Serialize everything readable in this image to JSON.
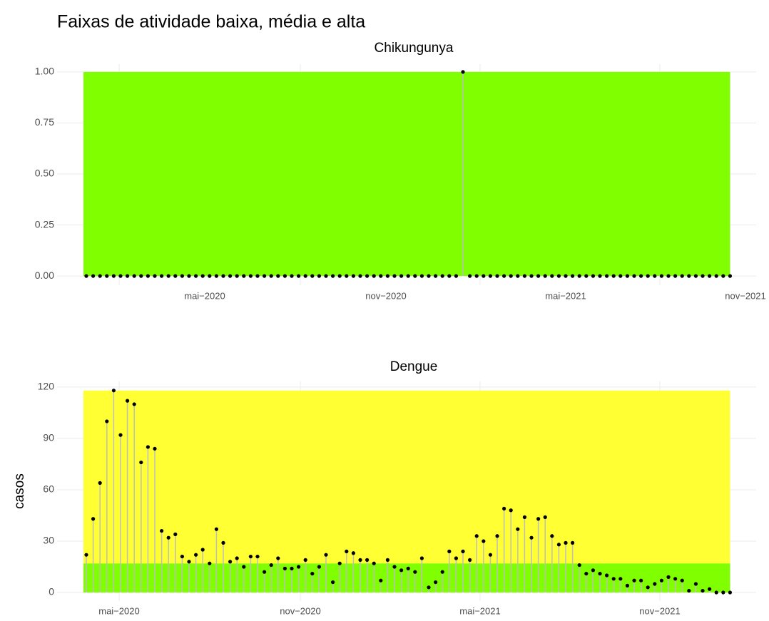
{
  "title": "Faixas de atividade baixa, média e alta",
  "chart_data": [
    {
      "type": "lollipop",
      "title": "Chikungunya",
      "values": [
        0,
        0,
        0,
        0,
        0,
        0,
        0,
        0,
        0,
        0,
        0,
        0,
        0,
        0,
        0,
        0,
        0,
        0,
        0,
        0,
        0,
        0,
        0,
        0,
        0,
        0,
        0,
        0,
        0,
        0,
        0,
        0,
        0,
        0,
        0,
        0,
        0,
        0,
        0,
        0,
        0,
        0,
        0,
        0,
        0,
        0,
        0,
        0,
        0,
        0,
        0,
        0,
        0,
        0,
        0,
        1,
        0,
        0,
        0,
        0,
        0,
        0,
        0,
        0,
        0,
        0,
        0,
        0,
        0,
        0,
        0,
        0,
        0,
        0,
        0,
        0,
        0,
        0,
        0,
        0,
        0,
        0,
        0,
        0,
        0,
        0,
        0,
        0,
        0,
        0,
        0,
        0,
        0,
        0,
        0
      ],
      "color": "#000000",
      "bands": [
        {
          "ymin": 0,
          "ymax": 1,
          "color": "#7fff00"
        }
      ],
      "xlim": [
        -4.27,
        97.81
      ],
      "xticks": [
        {
          "value": 4.79,
          "label": "mai−2020"
        },
        {
          "value": 31.25,
          "label": "nov−2020"
        },
        {
          "value": 57.5,
          "label": "mai−2021"
        },
        {
          "value": 83.75,
          "label": "nov−2021"
        }
      ],
      "ylim": [
        -0.045,
        1.038
      ],
      "yticks": [
        {
          "value": 0,
          "label": "0.00"
        },
        {
          "value": 0.25,
          "label": "0.25"
        },
        {
          "value": 0.5,
          "label": "0.50"
        },
        {
          "value": 0.75,
          "label": "0.75"
        },
        {
          "value": 1,
          "label": "1.00"
        }
      ],
      "grid": true
    },
    {
      "type": "lollipop",
      "title": "Dengue",
      "ylabel": "casos",
      "values": [
        22,
        43,
        64,
        100,
        118,
        92,
        112,
        110,
        76,
        85,
        84,
        36,
        32,
        34,
        21,
        18,
        22,
        25,
        17,
        37,
        29,
        18,
        20,
        15,
        21,
        21,
        12,
        16,
        20,
        14,
        14,
        15,
        19,
        11,
        15,
        22,
        6,
        17,
        24,
        23,
        19,
        19,
        17,
        7,
        19,
        15,
        13,
        14,
        12,
        20,
        3,
        6,
        12,
        24,
        20,
        24,
        19,
        33,
        30,
        22,
        33,
        49,
        48,
        37,
        44,
        32,
        43,
        44,
        33,
        28,
        29,
        29,
        16,
        11,
        13,
        11,
        10,
        8,
        8,
        4,
        7,
        7,
        3,
        5,
        7,
        9,
        8,
        7,
        1,
        5,
        1,
        2,
        0,
        0,
        0
      ],
      "color": "#000000",
      "bands": [
        {
          "ymin": 0,
          "ymax": 17,
          "color": "#7fff00"
        },
        {
          "ymin": 17,
          "ymax": 118,
          "color": "#ffff33"
        }
      ],
      "xlim": [
        -4.27,
        97.81
      ],
      "xticks": [
        {
          "value": 4.79,
          "label": "mai−2020"
        },
        {
          "value": 31.25,
          "label": "nov−2020"
        },
        {
          "value": 57.5,
          "label": "mai−2021"
        },
        {
          "value": 83.75,
          "label": "nov−2021"
        }
      ],
      "ylim": [
        -5,
        123.3
      ],
      "yticks": [
        0,
        30,
        60,
        90,
        120
      ],
      "grid": true
    }
  ]
}
